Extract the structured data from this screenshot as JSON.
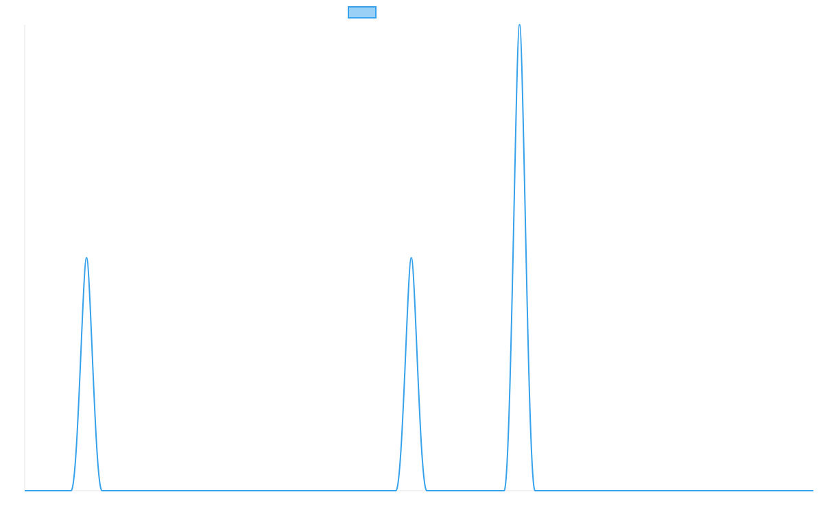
{
  "chart_data": {
    "type": "line",
    "title": "",
    "xlabel": "",
    "ylabel": "",
    "grid": false,
    "legend": {
      "placement": "top-center",
      "entries": [
        {
          "label": "",
          "color": "#36a2eb",
          "fill": "#9ad0f5"
        }
      ]
    },
    "xlim": [
      0,
      51
    ],
    "ylim": [
      0,
      2
    ],
    "series": [
      {
        "color": "#36a2eb",
        "x": [
          0,
          3,
          4,
          5,
          24,
          25,
          26,
          31,
          32,
          33,
          51
        ],
        "y": [
          0,
          0,
          1,
          0,
          0,
          1,
          0,
          0,
          2,
          0,
          0
        ]
      }
    ]
  }
}
